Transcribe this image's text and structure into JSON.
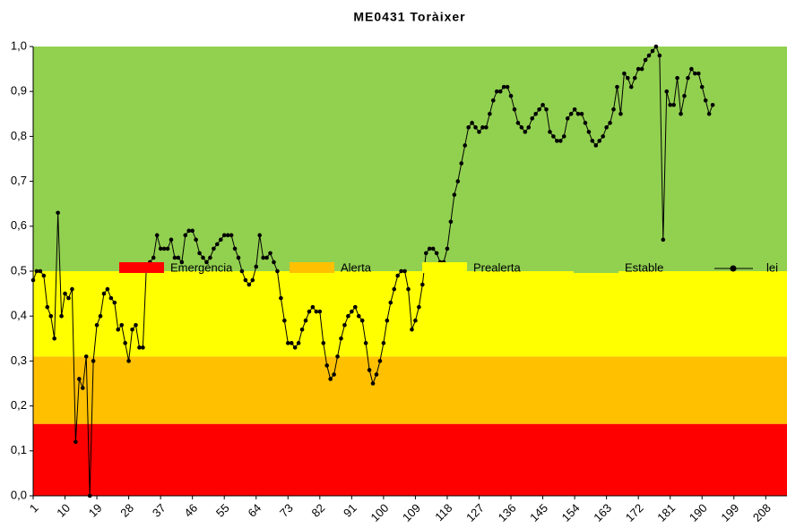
{
  "chart_data": {
    "type": "line",
    "title": "ME0431 Toràixer",
    "bands": [
      {
        "name": "Emergència",
        "color": "#ff0000",
        "value": 0.16
      },
      {
        "name": "Alerta",
        "color": "#ffc000",
        "value": 0.15
      },
      {
        "name": "Prealerta",
        "color": "#ffff00",
        "value": 0.19
      },
      {
        "name": "Estable",
        "color": "#92d050",
        "value": 0.5
      }
    ],
    "x": [
      1,
      2,
      3,
      4,
      5,
      6,
      7,
      8,
      9,
      10,
      11,
      12,
      13,
      14,
      15,
      16,
      17,
      18,
      19,
      20,
      21,
      22,
      23,
      24,
      25,
      26,
      27,
      28,
      29,
      30,
      31,
      32,
      33,
      34,
      35,
      36,
      37,
      38,
      39,
      40,
      41,
      42,
      43,
      44,
      45,
      46,
      47,
      48,
      49,
      50,
      51,
      52,
      53,
      54,
      55,
      56,
      57,
      58,
      59,
      60,
      61,
      62,
      63,
      64,
      65,
      66,
      67,
      68,
      69,
      70,
      71,
      72,
      73,
      74,
      75,
      76,
      77,
      78,
      79,
      80,
      81,
      82,
      83,
      84,
      85,
      86,
      87,
      88,
      89,
      90,
      91,
      92,
      93,
      94,
      95,
      96,
      97,
      98,
      99,
      100,
      101,
      102,
      103,
      104,
      105,
      106,
      107,
      108,
      109,
      110,
      111,
      112,
      113,
      114,
      115,
      116,
      117,
      118,
      119,
      120,
      121,
      122,
      123,
      124,
      125,
      126,
      127,
      128,
      129,
      130,
      131,
      132,
      133,
      134,
      135,
      136,
      137,
      138,
      139,
      140,
      141,
      142,
      143,
      144,
      145,
      146,
      147,
      148,
      149,
      150,
      151,
      152,
      153,
      154,
      155,
      156,
      157,
      158,
      159,
      160,
      161,
      162,
      163,
      164,
      165,
      166,
      167,
      168,
      169,
      170,
      171,
      172,
      173,
      174,
      175,
      176,
      177,
      178,
      179,
      180,
      181,
      182,
      183,
      184,
      185,
      186,
      187,
      188,
      189,
      190,
      191,
      192,
      193
    ],
    "series": [
      {
        "name": "lei",
        "color": "#000000",
        "values": [
          0.48,
          0.5,
          0.5,
          0.49,
          0.42,
          0.4,
          0.35,
          0.63,
          0.4,
          0.45,
          0.44,
          0.46,
          0.12,
          0.26,
          0.24,
          0.31,
          0.0,
          0.3,
          0.38,
          0.4,
          0.45,
          0.46,
          0.44,
          0.43,
          0.37,
          0.38,
          0.34,
          0.3,
          0.37,
          0.38,
          0.33,
          0.33,
          0.51,
          0.52,
          0.53,
          0.58,
          0.55,
          0.55,
          0.55,
          0.57,
          0.53,
          0.53,
          0.52,
          0.58,
          0.59,
          0.59,
          0.57,
          0.54,
          0.53,
          0.52,
          0.53,
          0.55,
          0.56,
          0.57,
          0.58,
          0.58,
          0.58,
          0.55,
          0.53,
          0.5,
          0.48,
          0.47,
          0.48,
          0.51,
          0.58,
          0.53,
          0.53,
          0.54,
          0.52,
          0.5,
          0.44,
          0.39,
          0.34,
          0.34,
          0.33,
          0.34,
          0.37,
          0.39,
          0.41,
          0.42,
          0.41,
          0.41,
          0.34,
          0.29,
          0.26,
          0.27,
          0.31,
          0.35,
          0.38,
          0.4,
          0.41,
          0.42,
          0.4,
          0.39,
          0.34,
          0.28,
          0.25,
          0.27,
          0.3,
          0.34,
          0.39,
          0.43,
          0.46,
          0.49,
          0.5,
          0.5,
          0.46,
          0.37,
          0.39,
          0.42,
          0.47,
          0.54,
          0.55,
          0.55,
          0.54,
          0.52,
          0.52,
          0.55,
          0.61,
          0.67,
          0.7,
          0.74,
          0.78,
          0.82,
          0.83,
          0.82,
          0.81,
          0.82,
          0.82,
          0.85,
          0.88,
          0.9,
          0.9,
          0.91,
          0.91,
          0.89,
          0.86,
          0.83,
          0.82,
          0.81,
          0.82,
          0.84,
          0.85,
          0.86,
          0.87,
          0.86,
          0.81,
          0.8,
          0.79,
          0.79,
          0.8,
          0.84,
          0.85,
          0.86,
          0.85,
          0.85,
          0.83,
          0.81,
          0.79,
          0.78,
          0.79,
          0.8,
          0.82,
          0.83,
          0.86,
          0.91,
          0.85,
          0.94,
          0.93,
          0.91,
          0.93,
          0.95,
          0.95,
          0.97,
          0.98,
          0.99,
          1.0,
          0.98,
          0.57,
          0.9,
          0.87,
          0.87,
          0.93,
          0.85,
          0.89,
          0.93,
          0.95,
          0.94,
          0.94,
          0.91,
          0.88,
          0.85,
          0.87
        ]
      }
    ],
    "xlim": [
      1,
      214
    ],
    "xticks": [
      1,
      10,
      19,
      28,
      37,
      46,
      55,
      64,
      73,
      82,
      91,
      100,
      109,
      118,
      127,
      136,
      145,
      154,
      163,
      172,
      181,
      190,
      199,
      208
    ],
    "ylim": [
      0,
      1
    ],
    "yticks": [
      {
        "value": 0,
        "label": "0,0"
      },
      {
        "value": 0.1,
        "label": "0,1"
      },
      {
        "value": 0.2,
        "label": "0,2"
      },
      {
        "value": 0.3,
        "label": "0,3"
      },
      {
        "value": 0.4,
        "label": "0,4"
      },
      {
        "value": 0.5,
        "label": "0,5"
      },
      {
        "value": 0.6,
        "label": "0,6"
      },
      {
        "value": 0.7,
        "label": "0,7"
      },
      {
        "value": 0.8,
        "label": "0,8"
      },
      {
        "value": 0.9,
        "label": "0,9"
      },
      {
        "value": 1,
        "label": "1,0"
      }
    ]
  }
}
